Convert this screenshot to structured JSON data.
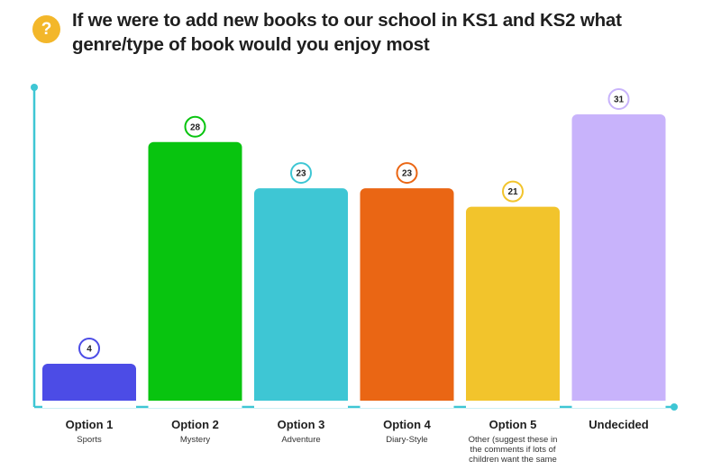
{
  "header": {
    "icon": "question-icon",
    "icon_glyph": "?",
    "icon_color": "#f3b72a",
    "title": "If we were to add new books to our school in KS1 and KS2 what genre/type of book would you enjoy most"
  },
  "chart_data": {
    "type": "bar",
    "categories": [
      "Option 1",
      "Option 2",
      "Option 3",
      "Option 4",
      "Option 5",
      "Undecided"
    ],
    "sublabels": [
      [
        "Sports"
      ],
      [
        "Mystery"
      ],
      [
        "Adventure"
      ],
      [
        "Diary-Style"
      ],
      [
        "Other (suggest these in",
        "the comments if lots of",
        "children want the same"
      ],
      []
    ],
    "values": [
      4,
      28,
      23,
      23,
      21,
      31
    ],
    "colors": [
      "#4c4ce6",
      "#08c40f",
      "#3ec6d4",
      "#ea6614",
      "#f2c42c",
      "#c8b3fb"
    ],
    "axis_color": "#3ec6d4",
    "ylim": [
      0,
      31
    ],
    "grid": false,
    "title": "If we were to add new books to our school in KS1 and KS2 what genre/type of book would you enjoy most",
    "xlabel": "",
    "ylabel": ""
  }
}
